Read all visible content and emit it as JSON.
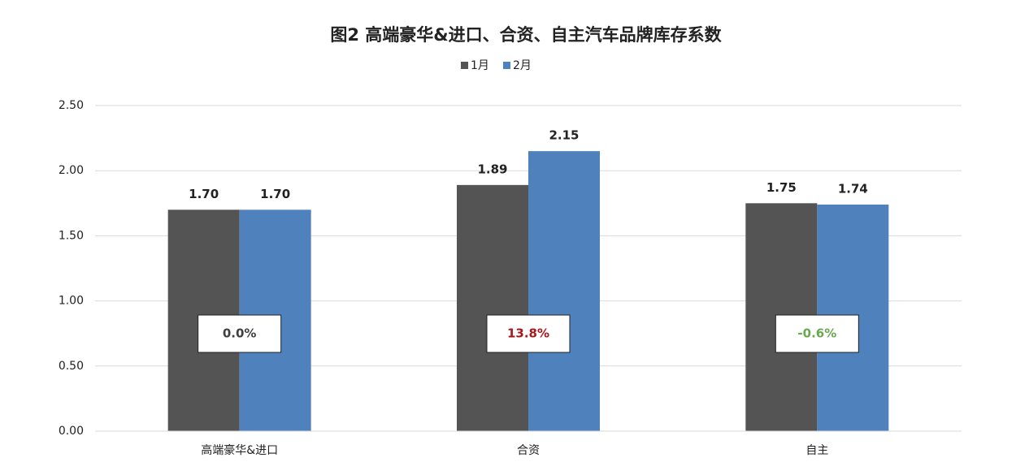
{
  "chart_data": {
    "type": "bar",
    "title": "图2  高端豪华&进口、合资、自主汽车品牌库存系数",
    "categories": [
      "高端豪华&进口",
      "合资",
      "自主"
    ],
    "series": [
      {
        "name": "1月",
        "color": "#545454",
        "values": [
          1.7,
          1.89,
          1.75
        ],
        "value_labels": [
          "1.70",
          "1.89",
          "1.75"
        ]
      },
      {
        "name": "2月",
        "color": "#4f81bd",
        "values": [
          1.7,
          2.15,
          1.74
        ],
        "value_labels": [
          "1.70",
          "2.15",
          "1.74"
        ]
      }
    ],
    "annotations": [
      {
        "text": "0.0%",
        "color": "#404040"
      },
      {
        "text": "13.8%",
        "color": "#a8171b"
      },
      {
        "text": "-0.6%",
        "color": "#6aa84f"
      }
    ],
    "ylim": [
      0,
      2.5
    ],
    "yticks": [
      {
        "value": 0,
        "label": "0.00"
      },
      {
        "value": 0.5,
        "label": "0.50"
      },
      {
        "value": 1,
        "label": "1.00"
      },
      {
        "value": 1.5,
        "label": "1.50"
      },
      {
        "value": 2,
        "label": "2.00"
      },
      {
        "value": 2.5,
        "label": "2.50"
      }
    ],
    "grid": true,
    "legend": "top"
  }
}
